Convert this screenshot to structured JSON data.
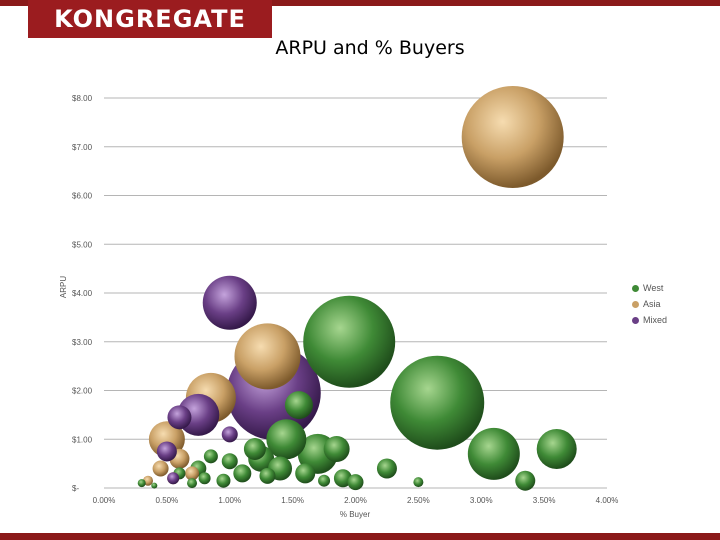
{
  "logo": {
    "text": "KONGREGATE"
  },
  "colors": {
    "brand": "#9b1c1f",
    "West": "#3f8a36",
    "Asia": "#c9a066",
    "Mixed": "#6a3f86"
  },
  "chart_data": {
    "type": "scatter",
    "title": "ARPU and % Buyers",
    "xlabel": "% Buyer",
    "ylabel": "ARPU",
    "xlim": [
      0,
      4.0
    ],
    "ylim": [
      0,
      8.0
    ],
    "x_ticks": [
      "0.00%",
      "0.50%",
      "1.00%",
      "1.50%",
      "2.00%",
      "2.50%",
      "3.00%",
      "3.50%",
      "4.00%"
    ],
    "y_ticks": [
      "$-",
      "$1.00",
      "$2.00",
      "$3.00",
      "$4.00",
      "$5.00",
      "$6.00",
      "$7.00",
      "$8.00"
    ],
    "legend_position": "right",
    "grid": true,
    "series": [
      {
        "name": "West",
        "points": [
          {
            "x": 1.95,
            "y": 3.0,
            "size": 46
          },
          {
            "x": 2.65,
            "y": 1.75,
            "size": 47
          },
          {
            "x": 3.1,
            "y": 0.7,
            "size": 26
          },
          {
            "x": 3.6,
            "y": 0.8,
            "size": 20
          },
          {
            "x": 3.35,
            "y": 0.15,
            "size": 10
          },
          {
            "x": 2.25,
            "y": 0.4,
            "size": 10
          },
          {
            "x": 2.5,
            "y": 0.12,
            "size": 5
          },
          {
            "x": 1.7,
            "y": 0.7,
            "size": 20
          },
          {
            "x": 1.85,
            "y": 0.8,
            "size": 13
          },
          {
            "x": 1.55,
            "y": 1.7,
            "size": 14
          },
          {
            "x": 1.45,
            "y": 1.0,
            "size": 20
          },
          {
            "x": 1.25,
            "y": 0.6,
            "size": 13
          },
          {
            "x": 1.4,
            "y": 0.4,
            "size": 12
          },
          {
            "x": 1.6,
            "y": 0.3,
            "size": 10
          },
          {
            "x": 1.2,
            "y": 0.8,
            "size": 11
          },
          {
            "x": 1.1,
            "y": 0.3,
            "size": 9
          },
          {
            "x": 1.0,
            "y": 0.55,
            "size": 8
          },
          {
            "x": 0.95,
            "y": 0.15,
            "size": 7
          },
          {
            "x": 0.85,
            "y": 0.65,
            "size": 7
          },
          {
            "x": 0.75,
            "y": 0.4,
            "size": 8
          },
          {
            "x": 0.8,
            "y": 0.2,
            "size": 6
          },
          {
            "x": 0.6,
            "y": 0.3,
            "size": 6
          },
          {
            "x": 0.7,
            "y": 0.1,
            "size": 5
          },
          {
            "x": 0.3,
            "y": 0.1,
            "size": 4
          },
          {
            "x": 0.4,
            "y": 0.05,
            "size": 3
          },
          {
            "x": 1.9,
            "y": 0.2,
            "size": 9
          },
          {
            "x": 2.0,
            "y": 0.12,
            "size": 8
          },
          {
            "x": 1.3,
            "y": 0.25,
            "size": 8
          },
          {
            "x": 1.75,
            "y": 0.15,
            "size": 6
          }
        ]
      },
      {
        "name": "Asia",
        "points": [
          {
            "x": 3.25,
            "y": 7.2,
            "size": 51
          },
          {
            "x": 1.3,
            "y": 2.7,
            "size": 33
          },
          {
            "x": 0.85,
            "y": 1.85,
            "size": 25
          },
          {
            "x": 0.5,
            "y": 1.0,
            "size": 18
          },
          {
            "x": 0.6,
            "y": 0.6,
            "size": 10
          },
          {
            "x": 0.45,
            "y": 0.4,
            "size": 8
          },
          {
            "x": 0.7,
            "y": 0.3,
            "size": 7
          },
          {
            "x": 0.55,
            "y": 0.2,
            "size": 6
          },
          {
            "x": 0.35,
            "y": 0.15,
            "size": 5
          }
        ]
      },
      {
        "name": "Mixed",
        "points": [
          {
            "x": 1.35,
            "y": 1.95,
            "size": 47
          },
          {
            "x": 1.0,
            "y": 3.8,
            "size": 27
          },
          {
            "x": 0.75,
            "y": 1.5,
            "size": 21
          },
          {
            "x": 0.6,
            "y": 1.45,
            "size": 12
          },
          {
            "x": 0.5,
            "y": 0.75,
            "size": 10
          },
          {
            "x": 1.0,
            "y": 1.1,
            "size": 8
          },
          {
            "x": 0.55,
            "y": 0.2,
            "size": 6
          }
        ]
      }
    ]
  }
}
